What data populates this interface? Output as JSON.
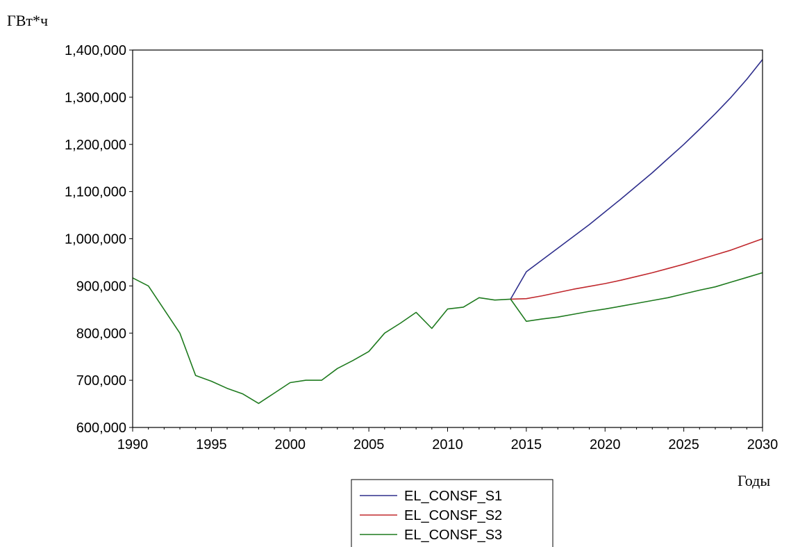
{
  "chart_data": {
    "type": "line",
    "ylabel": "ГВт*ч",
    "xlabel": "Годы",
    "xlim": [
      1990,
      2030
    ],
    "ylim": [
      600000,
      1400000
    ],
    "x_ticks": [
      1990,
      1995,
      2000,
      2005,
      2010,
      2015,
      2020,
      2025,
      2030
    ],
    "y_ticks": [
      600000,
      700000,
      800000,
      900000,
      1000000,
      1100000,
      1200000,
      1300000,
      1400000
    ],
    "y_tick_labels": [
      "600,000",
      "700,000",
      "800,000",
      "900,000",
      "1,000,000",
      "1,100,000",
      "1,200,000",
      "1,300,000",
      "1,400,000"
    ],
    "grid": false,
    "legend_position": "bottom-center",
    "historical": {
      "x": [
        1990,
        1991,
        1992,
        1993,
        1994,
        1995,
        1996,
        1997,
        1998,
        1999,
        2000,
        2001,
        2002,
        2003,
        2004,
        2005,
        2006,
        2007,
        2008,
        2009,
        2010,
        2011,
        2012,
        2013,
        2014
      ],
      "values": [
        917000,
        900000,
        850000,
        800000,
        710000,
        698000,
        683000,
        671000,
        651000,
        673000,
        695000,
        700000,
        700000,
        725000,
        742000,
        761000,
        800000,
        821000,
        844000,
        810000,
        851000,
        855000,
        875000,
        870000,
        872000
      ]
    },
    "series": [
      {
        "name": "EL_CONSF_S1",
        "color": "#2e2e8c",
        "x": [
          2014,
          2015,
          2016,
          2017,
          2018,
          2019,
          2020,
          2021,
          2022,
          2023,
          2024,
          2025,
          2026,
          2027,
          2028,
          2029,
          2030
        ],
        "values": [
          872000,
          930000,
          955000,
          980000,
          1005000,
          1030000,
          1057000,
          1084000,
          1112000,
          1140000,
          1170000,
          1200000,
          1232000,
          1265000,
          1300000,
          1338000,
          1380000
        ]
      },
      {
        "name": "EL_CONSF_S2",
        "color": "#c0282d",
        "x": [
          2014,
          2015,
          2016,
          2017,
          2018,
          2019,
          2020,
          2021,
          2022,
          2023,
          2024,
          2025,
          2026,
          2027,
          2028,
          2029,
          2030
        ],
        "values": [
          872000,
          873000,
          879000,
          886000,
          893000,
          899000,
          905000,
          912000,
          920000,
          928000,
          937000,
          946000,
          956000,
          966000,
          976000,
          988000,
          1000000
        ]
      },
      {
        "name": "EL_CONSF_S3",
        "color": "#1e7a1e",
        "x": [
          2014,
          2015,
          2016,
          2017,
          2018,
          2019,
          2020,
          2021,
          2022,
          2023,
          2024,
          2025,
          2026,
          2027,
          2028,
          2029,
          2030
        ],
        "values": [
          872000,
          825000,
          830000,
          834000,
          840000,
          846000,
          851000,
          857000,
          863000,
          869000,
          875000,
          883000,
          891000,
          898000,
          908000,
          918000,
          928000
        ]
      }
    ]
  }
}
